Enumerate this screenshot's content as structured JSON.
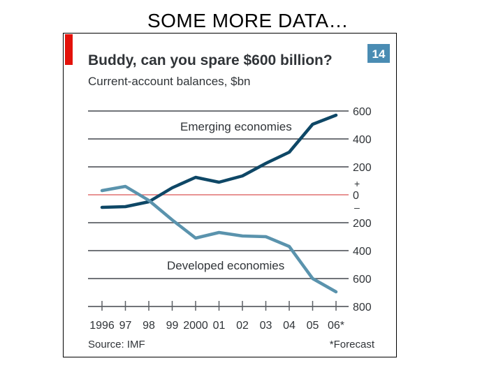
{
  "slide": {
    "title": "SOME MORE DATA…"
  },
  "chart_data": {
    "type": "line",
    "title": "Buddy, can you spare $600 billion?",
    "subtitle": "Current-account balances, $bn",
    "badge": "14",
    "x": [
      1996,
      1997,
      1998,
      1999,
      2000,
      2001,
      2002,
      2003,
      2004,
      2005,
      2006
    ],
    "x_tick_labels": [
      "1996",
      "97",
      "98",
      "99",
      "2000",
      "01",
      "02",
      "03",
      "04",
      "05",
      "06*"
    ],
    "ylim": [
      -800,
      600
    ],
    "y_ticks": [
      600,
      400,
      200,
      0,
      -200,
      -400,
      -600,
      -800
    ],
    "y_tick_labels": [
      "600",
      "400",
      "200",
      "0",
      "200",
      "400",
      "600",
      "800"
    ],
    "y_sign_plus": "+",
    "y_sign_minus": "–",
    "series": [
      {
        "name": "Emerging economies",
        "values": [
          -90,
          -85,
          -50,
          50,
          125,
          90,
          135,
          225,
          305,
          505,
          570
        ],
        "color": "#0e4766"
      },
      {
        "name": "Developed economies",
        "values": [
          30,
          60,
          -40,
          -180,
          -310,
          -270,
          -295,
          -300,
          -370,
          -600,
          -695
        ],
        "color": "#5a93ad"
      }
    ],
    "zero_line_color": "#e07070",
    "grid_color": "#5d6166",
    "accent_color": "#e3120b",
    "badge_color": "#4a8cb3",
    "source": "Source: IMF",
    "footnote": "*Forecast"
  }
}
